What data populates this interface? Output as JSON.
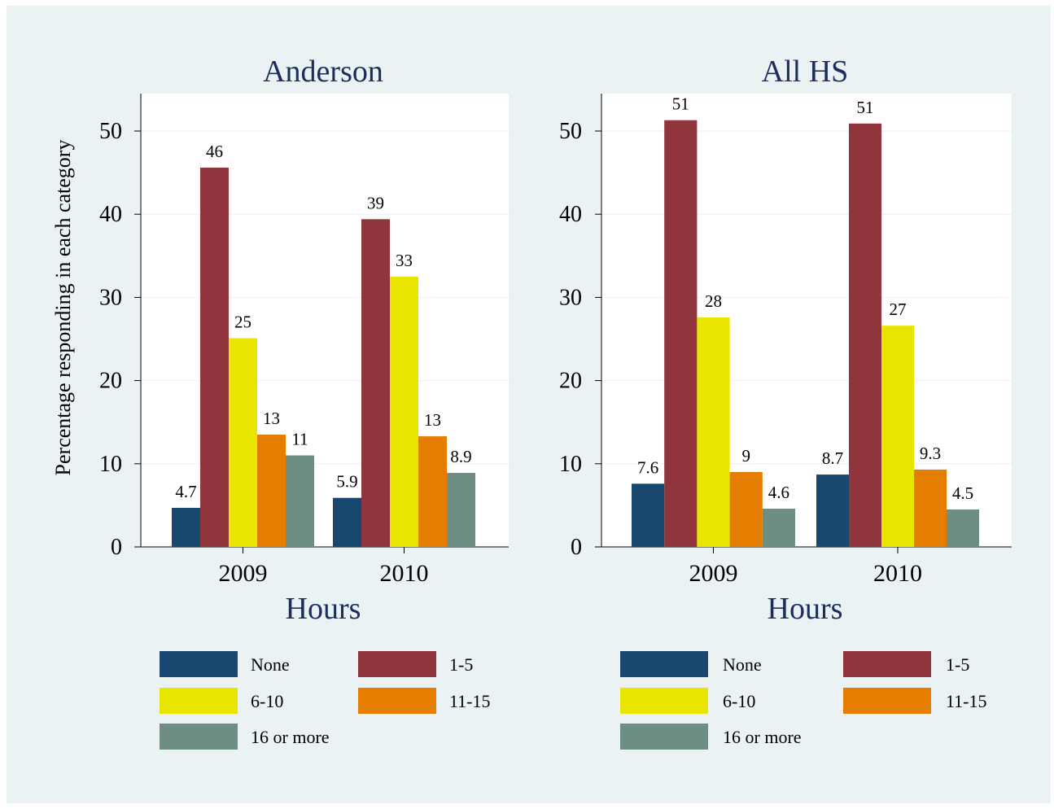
{
  "colors": {
    "outer_bg": "#eaf2f3",
    "plot_bg": "#ffffff",
    "title": "#1a2f5e",
    "grid": "#eaf2f3"
  },
  "ylabel": "Percentage responding in each category",
  "chart_data": [
    {
      "type": "bar",
      "title": "Anderson",
      "xlabel": "Hours",
      "ylabel": "Percentage responding in each category",
      "categories": [
        "2009",
        "2010"
      ],
      "ylim": [
        0,
        54.5
      ],
      "yticks": [
        0,
        10,
        20,
        30,
        40,
        50
      ],
      "grid": true,
      "legend_position": "bottom",
      "series": [
        {
          "name": "None",
          "color": "#1a476f",
          "values": [
            4.7,
            5.9
          ],
          "labels": [
            "4.7",
            "5.9"
          ]
        },
        {
          "name": "1-5",
          "color": "#90353b",
          "values": [
            45.6,
            39.4
          ],
          "labels": [
            "46",
            "39"
          ]
        },
        {
          "name": "6-10",
          "color": "#e8e600",
          "values": [
            25.1,
            32.5
          ],
          "labels": [
            "25",
            "33"
          ]
        },
        {
          "name": "11-15",
          "color": "#e47d00",
          "values": [
            13.5,
            13.3
          ],
          "labels": [
            "13",
            "13"
          ]
        },
        {
          "name": "16 or more",
          "color": "#6e8e84",
          "values": [
            11.0,
            8.9
          ],
          "labels": [
            "11",
            "8.9"
          ]
        }
      ]
    },
    {
      "type": "bar",
      "title": "All HS",
      "xlabel": "Hours",
      "ylabel": "",
      "categories": [
        "2009",
        "2010"
      ],
      "ylim": [
        0,
        54.5
      ],
      "yticks": [
        0,
        10,
        20,
        30,
        40,
        50
      ],
      "grid": true,
      "legend_position": "bottom",
      "series": [
        {
          "name": "None",
          "color": "#1a476f",
          "values": [
            7.6,
            8.7
          ],
          "labels": [
            "7.6",
            "8.7"
          ]
        },
        {
          "name": "1-5",
          "color": "#90353b",
          "values": [
            51.3,
            50.9
          ],
          "labels": [
            "51",
            "51"
          ]
        },
        {
          "name": "6-10",
          "color": "#e8e600",
          "values": [
            27.6,
            26.6
          ],
          "labels": [
            "28",
            "27"
          ]
        },
        {
          "name": "11-15",
          "color": "#e47d00",
          "values": [
            9.0,
            9.3
          ],
          "labels": [
            "9",
            "9.3"
          ]
        },
        {
          "name": "16 or more",
          "color": "#6e8e84",
          "values": [
            4.6,
            4.5
          ],
          "labels": [
            "4.6",
            "4.5"
          ]
        }
      ]
    }
  ]
}
